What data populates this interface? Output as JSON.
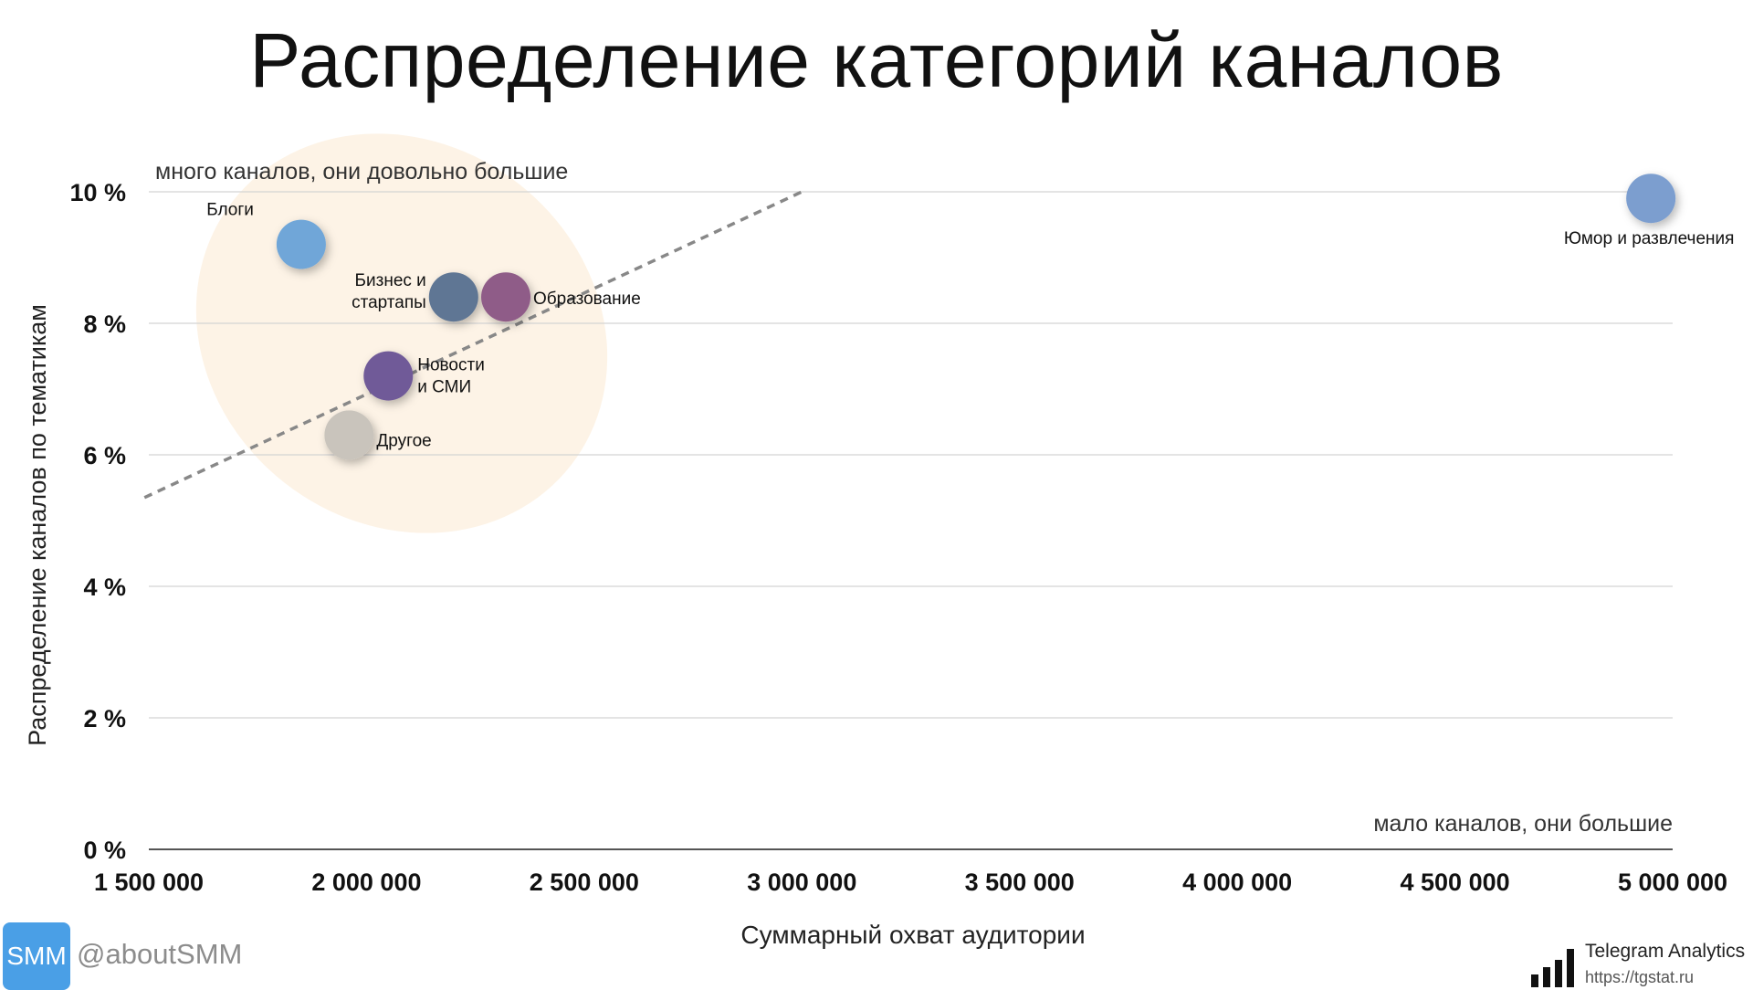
{
  "title": "Распределение категорий каналов",
  "chart_data": {
    "type": "scatter",
    "title": "Распределение категорий каналов",
    "xlabel": "Суммарный охват аудитории",
    "ylabel": "Распределение каналов по тематикам",
    "xlim": [
      1500000,
      5000000
    ],
    "ylim": [
      0,
      10
    ],
    "x_ticks": [
      1500000,
      2000000,
      2500000,
      3000000,
      3500000,
      4000000,
      4500000,
      5000000
    ],
    "x_tick_labels": [
      "1 500 000",
      "2 000 000",
      "2 500 000",
      "3 000 000",
      "3 500 000",
      "4 000 000",
      "4 500 000",
      "5 000 000"
    ],
    "y_ticks": [
      0,
      2,
      4,
      6,
      8,
      10
    ],
    "y_tick_labels": [
      "0 %",
      "2 %",
      "4 %",
      "6 %",
      "8 %",
      "10 %"
    ],
    "grid": "horizontal",
    "points": [
      {
        "label": "Блоги",
        "x": 1850000,
        "y": 9.2,
        "color": "#6fa6d8"
      },
      {
        "label": "Бизнес и стартапы",
        "x": 2200000,
        "y": 8.4,
        "color": "#5f7694"
      },
      {
        "label": "Образование",
        "x": 2320000,
        "y": 8.4,
        "color": "#8f5c88"
      },
      {
        "label": "Новости и СМИ",
        "x": 2050000,
        "y": 7.2,
        "color": "#6f5a98"
      },
      {
        "label": "Другое",
        "x": 1960000,
        "y": 6.3,
        "color": "#c9c4bc"
      },
      {
        "label": "Юмор и развлечения",
        "x": 4950000,
        "y": 9.9,
        "color": "#7c9ecf"
      }
    ],
    "trend_line": {
      "x1": 1490000,
      "y1": 5.35,
      "x2": 3000000,
      "y2": 10.0,
      "color": "#888888",
      "style": "dashed"
    },
    "annotations": [
      {
        "text": "много каналов, они довольно большие",
        "position": "top-left"
      },
      {
        "text": "мало каналов, они большие",
        "position": "bottom-right"
      }
    ],
    "highlight_color": "#fdf3e6"
  },
  "footer": {
    "brand_badge": "SMM",
    "handle": "@aboutSMM",
    "analytics_name": "Telegram Analytics",
    "analytics_url": "https://tgstat.ru"
  }
}
